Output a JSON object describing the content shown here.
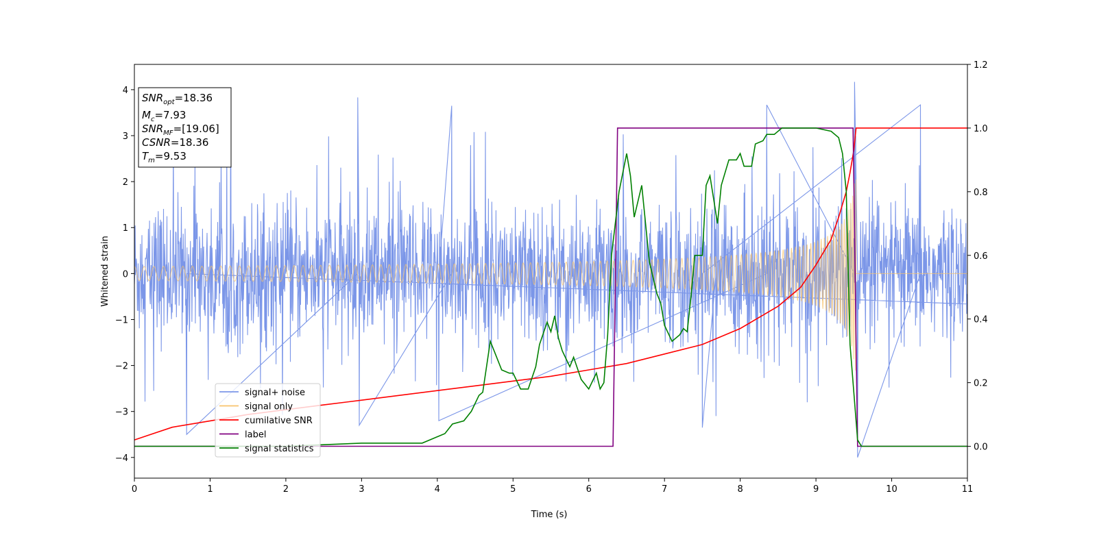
{
  "chart_data": {
    "type": "line",
    "xlabel": "Time (s)",
    "ylabel": "Whitened strain",
    "ylabel_right": "",
    "xlim": [
      0,
      11
    ],
    "ylim": [
      -4.45,
      4.55
    ],
    "ylim_right": [
      -0.1,
      1.2
    ],
    "x_ticks": [
      "0",
      "1",
      "2",
      "3",
      "4",
      "5",
      "6",
      "7",
      "8",
      "9",
      "10",
      "11"
    ],
    "y_ticks": [
      "4",
      "3",
      "2",
      "1",
      "0",
      "−1",
      "−2",
      "−3",
      "−4"
    ],
    "y_ticks_values": [
      4,
      3,
      2,
      1,
      0,
      -1,
      -2,
      -3,
      -4
    ],
    "y_right_ticks": [
      "1.2",
      "1.0",
      "0.8",
      "0.6",
      "0.4",
      "0.2",
      "0.0"
    ],
    "y_right_ticks_values": [
      1.2,
      1.0,
      0.8,
      0.6,
      0.4,
      0.2,
      0.0
    ],
    "legend_position": "lower-left",
    "series": [
      {
        "name": "signal+ noise",
        "axis": "left",
        "color": "#7b96e8",
        "description_values": "noise band roughly between -2 and +2.4 over 0-11 s with spikes",
        "spikes": [
          [
            0.69,
            -3.5
          ],
          [
            2.95,
            3.83
          ],
          [
            2.97,
            -3.3
          ],
          [
            4.19,
            3.65
          ],
          [
            4.02,
            -3.2
          ],
          [
            8.35,
            3.67
          ],
          [
            9.51,
            4.17
          ],
          [
            9.55,
            -4.0
          ],
          [
            10.38,
            3.67
          ],
          [
            7.5,
            -3.35
          ],
          [
            7.68,
            -3.1
          ]
        ]
      },
      {
        "name": "signal only",
        "axis": "left",
        "color": "#f8c36b",
        "chirp_start": 0,
        "chirp_end": 9.53,
        "start_amplitude": 0.08,
        "end_amplitude": 2.3
      },
      {
        "name": "cumilative SNR",
        "axis": "right",
        "color": "#ff0000",
        "x": [
          0,
          0.5,
          1,
          1.5,
          2,
          2.5,
          3,
          3.5,
          4,
          4.5,
          5,
          5.5,
          6,
          6.5,
          7,
          7.5,
          8,
          8.5,
          8.8,
          9,
          9.2,
          9.3,
          9.4,
          9.45,
          9.5,
          9.53,
          9.55,
          10,
          11
        ],
        "values": [
          0.02,
          0.06,
          0.08,
          0.1,
          0.115,
          0.13,
          0.145,
          0.16,
          0.175,
          0.19,
          0.205,
          0.22,
          0.24,
          0.26,
          0.29,
          0.32,
          0.37,
          0.44,
          0.5,
          0.57,
          0.65,
          0.72,
          0.8,
          0.86,
          0.93,
          1.0,
          1.0,
          1.0,
          1.0
        ]
      },
      {
        "name": "label",
        "axis": "right",
        "color": "#800080",
        "x": [
          0,
          6.32,
          6.38,
          9.49,
          9.55,
          11
        ],
        "values": [
          0,
          0,
          1,
          1,
          0,
          0
        ]
      },
      {
        "name": "signal statistics",
        "axis": "right",
        "color": "#008000",
        "x": [
          0,
          1,
          2,
          2.5,
          3,
          3.5,
          3.8,
          4,
          4.1,
          4.2,
          4.35,
          4.45,
          4.55,
          4.6,
          4.7,
          4.75,
          4.85,
          4.95,
          5,
          5.1,
          5.2,
          5.3,
          5.35,
          5.45,
          5.5,
          5.55,
          5.6,
          5.65,
          5.75,
          5.8,
          5.9,
          6,
          6.1,
          6.15,
          6.2,
          6.25,
          6.3,
          6.4,
          6.5,
          6.55,
          6.6,
          6.7,
          6.8,
          6.9,
          6.95,
          7,
          7.1,
          7.2,
          7.25,
          7.3,
          7.35,
          7.4,
          7.5,
          7.55,
          7.6,
          7.7,
          7.75,
          7.85,
          7.95,
          8,
          8.05,
          8.15,
          8.2,
          8.3,
          8.35,
          8.45,
          8.55,
          8.7,
          9,
          9.2,
          9.3,
          9.35,
          9.4,
          9.45,
          9.55,
          9.6,
          10,
          11
        ],
        "values": [
          0,
          0,
          0,
          0.005,
          0.01,
          0.01,
          0.01,
          0.03,
          0.04,
          0.07,
          0.08,
          0.11,
          0.16,
          0.17,
          0.33,
          0.3,
          0.24,
          0.23,
          0.23,
          0.18,
          0.18,
          0.25,
          0.32,
          0.39,
          0.36,
          0.41,
          0.34,
          0.3,
          0.25,
          0.28,
          0.21,
          0.18,
          0.23,
          0.18,
          0.2,
          0.35,
          0.6,
          0.8,
          0.92,
          0.85,
          0.72,
          0.82,
          0.58,
          0.48,
          0.45,
          0.38,
          0.33,
          0.35,
          0.37,
          0.36,
          0.47,
          0.6,
          0.6,
          0.82,
          0.85,
          0.7,
          0.82,
          0.9,
          0.9,
          0.92,
          0.88,
          0.88,
          0.95,
          0.96,
          0.98,
          0.98,
          1.0,
          1.0,
          1.0,
          0.99,
          0.97,
          0.92,
          0.8,
          0.32,
          0.02,
          0.0,
          0.0,
          0.0
        ]
      }
    ],
    "info_box": {
      "line1_main": "SNR",
      "line1_sub": "opt",
      "line1_value": "=18.36",
      "line2_main": "M",
      "line2_sub": "c",
      "line2_value": "=7.93",
      "line3_main": "SNR",
      "line3_sub": "MF",
      "line3_value": "=[19.06]",
      "line4_main": "CSNR",
      "line4_value": "=18.36",
      "line5_main": "T",
      "line5_sub": "m",
      "line5_value": "=9.53"
    },
    "legend": [
      {
        "label": "signal+ noise",
        "color": "#7b96e8"
      },
      {
        "label": "signal only",
        "color": "#f8c36b"
      },
      {
        "label": "cumilative SNR",
        "color": "#ff0000"
      },
      {
        "label": "label",
        "color": "#800080"
      },
      {
        "label": "signal statistics",
        "color": "#008000"
      }
    ]
  }
}
